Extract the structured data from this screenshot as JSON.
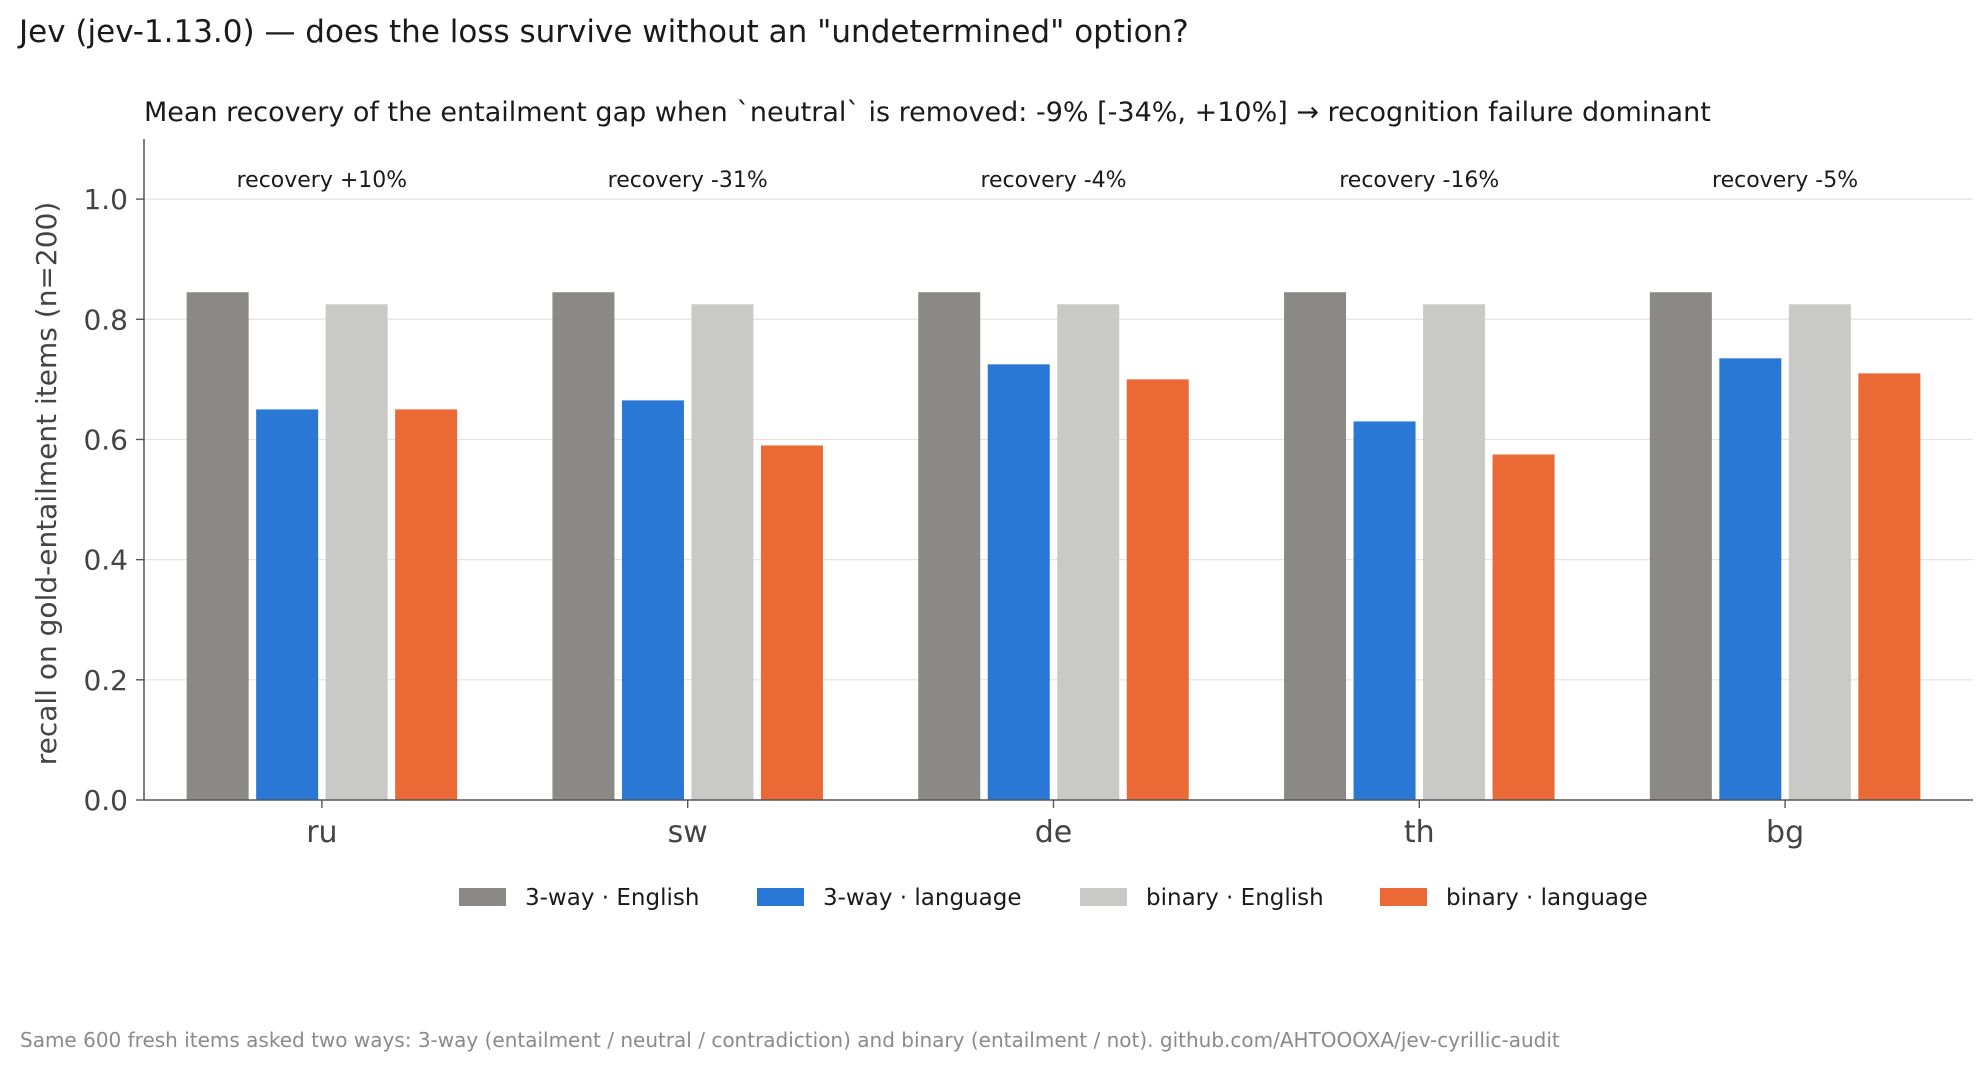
{
  "title": "Jev (jev-1.13.0) — does the loss survive without an \"undetermined\" option?",
  "footnote": "Same 600 fresh items asked two ways: 3-way (entailment / neutral / contradiction) and binary (entailment / not). github.com/AHTOOOXA/jev-cyrillic-audit",
  "chart_data": {
    "type": "bar",
    "subtitle": "Mean recovery of the entailment gap when `neutral` is removed: -9% [-34%, +10%]  → recognition failure dominant",
    "ylabel": "recall on gold-entailment items (n=200)",
    "xlabel": "",
    "ylim": [
      0,
      1.1
    ],
    "yticks": [
      0.0,
      0.2,
      0.4,
      0.6,
      0.8,
      1.0
    ],
    "ytick_labels": [
      "0.0",
      "0.2",
      "0.4",
      "0.6",
      "0.8",
      "1.0"
    ],
    "grid": "horizontal",
    "legend_position": "bottom",
    "categories": [
      "ru",
      "sw",
      "de",
      "th",
      "bg"
    ],
    "annotations": [
      "recovery +10%",
      "recovery -31%",
      "recovery -4%",
      "recovery -16%",
      "recovery -5%"
    ],
    "series": [
      {
        "name": "3-way · English",
        "color": "#8a8985",
        "values": [
          0.845,
          0.845,
          0.845,
          0.845,
          0.845
        ]
      },
      {
        "name": "3-way · language",
        "color": "#2a78d6",
        "values": [
          0.65,
          0.665,
          0.725,
          0.63,
          0.735
        ]
      },
      {
        "name": "binary · English",
        "color": "#c9c9c8",
        "values": [
          0.825,
          0.825,
          0.825,
          0.825,
          0.825
        ]
      },
      {
        "name": "binary · language",
        "color": "#ea6935",
        "values": [
          0.65,
          0.59,
          0.7,
          0.575,
          0.71
        ]
      }
    ]
  }
}
